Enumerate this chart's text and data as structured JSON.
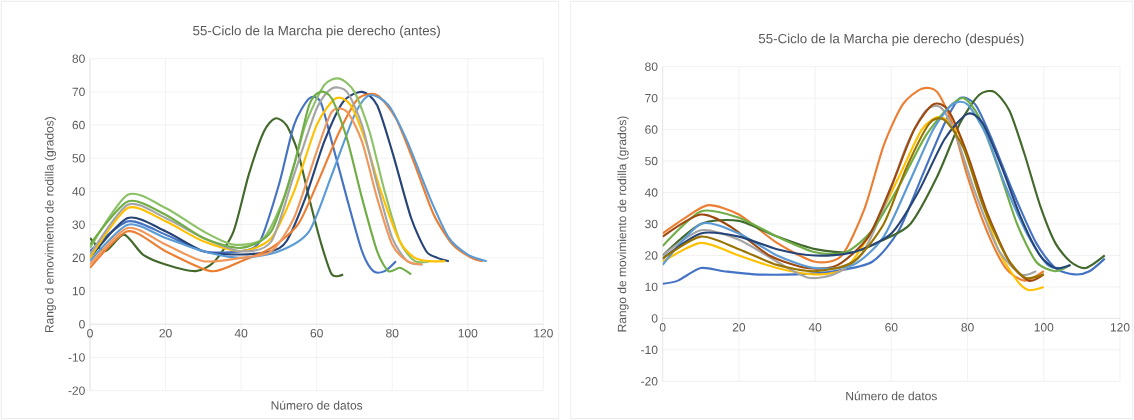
{
  "chart_data": [
    {
      "type": "line",
      "title": "55-Ciclo de la Marcha pie derecho (antes)",
      "xlabel": "Número de datos",
      "ylabel": "Rango d emovimiento de rodilla (grados)",
      "xlim": [
        0,
        120
      ],
      "ylim": [
        -20,
        80
      ],
      "xticks": [
        0,
        20,
        40,
        60,
        80,
        100,
        120
      ],
      "yticks": [
        -20,
        -10,
        0,
        10,
        20,
        30,
        40,
        50,
        60,
        70,
        80
      ],
      "grid": true,
      "marker": "none",
      "line_style": "solid",
      "series": [
        {
          "color": "#43682b",
          "x": [
            0,
            4,
            9,
            14,
            20,
            28,
            33,
            38,
            42,
            46,
            49,
            52,
            55,
            58,
            61,
            64,
            67
          ],
          "values": [
            26,
            22,
            27,
            21,
            18,
            16,
            19,
            28,
            45,
            58,
            62,
            60,
            52,
            38,
            25,
            15,
            15
          ]
        },
        {
          "color": "#4472c4",
          "x": [
            0,
            10,
            20,
            30,
            40,
            45,
            50,
            54,
            58,
            61,
            64,
            68,
            72,
            75,
            78,
            81
          ],
          "values": [
            22,
            31,
            27,
            22,
            22,
            25,
            42,
            60,
            68,
            67,
            55,
            38,
            22,
            16,
            16,
            19
          ]
        },
        {
          "color": "#264478",
          "x": [
            0,
            10,
            20,
            30,
            40,
            48,
            52,
            57,
            62,
            67,
            72,
            76,
            80,
            85,
            89,
            92,
            95
          ],
          "values": [
            20,
            32,
            28,
            22,
            21,
            22,
            25,
            38,
            55,
            67,
            70,
            66,
            52,
            32,
            22,
            20,
            19
          ]
        },
        {
          "color": "#ed7d31",
          "x": [
            0,
            10,
            20,
            32,
            40,
            48,
            55,
            60,
            66,
            71,
            76,
            81,
            86,
            91,
            96,
            101,
            104
          ],
          "values": [
            17,
            28,
            22,
            16,
            19,
            23,
            30,
            42,
            58,
            68,
            69,
            62,
            48,
            33,
            24,
            20,
            19
          ]
        },
        {
          "color": "#5b9bd5",
          "x": [
            0,
            10,
            20,
            30,
            40,
            50,
            58,
            64,
            70,
            74,
            79,
            84,
            90,
            95,
            100,
            105
          ],
          "values": [
            19,
            30,
            26,
            22,
            20,
            22,
            28,
            45,
            63,
            69,
            66,
            55,
            38,
            26,
            21,
            19
          ]
        },
        {
          "color": "#8cc168",
          "x": [
            0,
            10,
            20,
            30,
            38,
            46,
            52,
            57,
            62,
            66,
            70,
            74,
            78,
            82,
            86,
            90
          ],
          "values": [
            23,
            39,
            35,
            28,
            24,
            26,
            40,
            60,
            72,
            74,
            70,
            58,
            40,
            25,
            19,
            19
          ]
        },
        {
          "color": "#ffc000",
          "x": [
            0,
            10,
            20,
            30,
            40,
            48,
            54,
            60,
            65,
            69,
            73,
            77,
            82,
            86,
            90,
            94
          ],
          "values": [
            20,
            35,
            31,
            25,
            22,
            26,
            40,
            60,
            68,
            66,
            55,
            40,
            25,
            20,
            19,
            19
          ]
        },
        {
          "color": "#a5a5a5",
          "x": [
            0,
            10,
            20,
            30,
            40,
            48,
            54,
            60,
            64,
            68,
            72,
            76,
            80,
            84,
            88
          ],
          "values": [
            21,
            36,
            32,
            26,
            22,
            25,
            45,
            65,
            71,
            70,
            60,
            42,
            26,
            19,
            18
          ]
        },
        {
          "color": "#f1975a",
          "x": [
            0,
            10,
            20,
            30,
            40,
            48,
            54,
            60,
            64,
            68,
            72,
            76,
            80,
            84,
            88
          ],
          "values": [
            18,
            29,
            24,
            19,
            20,
            22,
            32,
            52,
            64,
            64,
            55,
            38,
            24,
            19,
            18
          ]
        },
        {
          "color": "#70ad47",
          "x": [
            0,
            10,
            20,
            30,
            40,
            48,
            54,
            58,
            61,
            64,
            68,
            72,
            76,
            79,
            82,
            85
          ],
          "values": [
            24,
            37,
            33,
            26,
            23,
            28,
            48,
            66,
            70,
            68,
            56,
            38,
            22,
            16,
            17,
            15
          ]
        }
      ]
    },
    {
      "type": "line",
      "title": "55-Ciclo de la Marcha  pie derecho (después)",
      "xlabel": "Número de datos",
      "ylabel": "Rango de movimiento de rodilla (grados)",
      "xlim": [
        0,
        120
      ],
      "ylim": [
        -20,
        80
      ],
      "xticks": [
        0,
        20,
        40,
        60,
        80,
        100,
        120
      ],
      "yticks": [
        -20,
        -10,
        0,
        10,
        20,
        30,
        40,
        50,
        60,
        70,
        80
      ],
      "grid": true,
      "marker": "none",
      "line_style": "solid",
      "series": [
        {
          "color": "#4472c4",
          "x": [
            0,
            4,
            10,
            16,
            24,
            35,
            45,
            55,
            62,
            68,
            74,
            78,
            82,
            86,
            92,
            98,
            103,
            108,
            112,
            116
          ],
          "values": [
            11,
            12,
            16,
            15,
            14,
            14,
            15,
            18,
            28,
            45,
            62,
            70,
            68,
            58,
            40,
            24,
            16,
            14,
            15,
            19
          ]
        },
        {
          "color": "#ed7d31",
          "x": [
            0,
            6,
            12,
            20,
            30,
            40,
            47,
            53,
            58,
            63,
            68,
            72,
            76,
            80,
            85,
            90,
            95,
            100
          ],
          "values": [
            27,
            32,
            36,
            33,
            24,
            18,
            20,
            35,
            55,
            68,
            73,
            72,
            62,
            45,
            28,
            16,
            12,
            15
          ]
        },
        {
          "color": "#43682b",
          "x": [
            0,
            10,
            20,
            30,
            40,
            50,
            58,
            65,
            72,
            78,
            83,
            87,
            91,
            95,
            99,
            103,
            107,
            111,
            116
          ],
          "values": [
            20,
            30,
            31,
            26,
            22,
            21,
            25,
            30,
            45,
            62,
            71,
            72,
            66,
            52,
            36,
            24,
            18,
            16,
            20
          ]
        },
        {
          "color": "#ffc000",
          "x": [
            0,
            10,
            20,
            30,
            40,
            48,
            55,
            62,
            68,
            73,
            78,
            83,
            88,
            93,
            96,
            100
          ],
          "values": [
            18,
            24,
            20,
            16,
            14,
            16,
            28,
            45,
            60,
            64,
            58,
            40,
            22,
            12,
            9,
            10
          ]
        },
        {
          "color": "#a5a5a5",
          "x": [
            0,
            10,
            20,
            30,
            38,
            45,
            52,
            58,
            64,
            69,
            73,
            77,
            82,
            88,
            94,
            98
          ],
          "values": [
            20,
            28,
            25,
            18,
            13,
            14,
            20,
            35,
            55,
            66,
            67,
            58,
            40,
            22,
            14,
            15
          ]
        },
        {
          "color": "#70ad47",
          "x": [
            0,
            10,
            20,
            30,
            40,
            48,
            55,
            62,
            69,
            75,
            79,
            83,
            88,
            93,
            98,
            103,
            107
          ],
          "values": [
            23,
            34,
            32,
            26,
            21,
            21,
            28,
            42,
            58,
            67,
            70,
            64,
            48,
            30,
            18,
            15,
            17
          ]
        },
        {
          "color": "#9e480e",
          "x": [
            0,
            10,
            18,
            28,
            38,
            46,
            54,
            60,
            66,
            71,
            75,
            80,
            85,
            91,
            96,
            100
          ],
          "values": [
            26,
            33,
            29,
            20,
            16,
            17,
            26,
            42,
            60,
            68,
            66,
            52,
            34,
            18,
            12,
            14
          ]
        },
        {
          "color": "#5b9bd5",
          "x": [
            0,
            10,
            20,
            30,
            40,
            50,
            58,
            65,
            71,
            76,
            80,
            85,
            90,
            96,
            101,
            105
          ],
          "values": [
            17,
            30,
            27,
            20,
            16,
            17,
            26,
            44,
            60,
            68,
            68,
            58,
            42,
            26,
            17,
            16
          ]
        },
        {
          "color": "#264478",
          "x": [
            0,
            10,
            20,
            30,
            40,
            50,
            60,
            67,
            74,
            80,
            84,
            89,
            94,
            99,
            103,
            107
          ],
          "values": [
            19,
            27,
            26,
            22,
            20,
            21,
            27,
            40,
            57,
            65,
            62,
            48,
            32,
            20,
            16,
            17
          ]
        },
        {
          "color": "#997300",
          "x": [
            0,
            10,
            20,
            30,
            40,
            50,
            58,
            64,
            70,
            74,
            79,
            84,
            90,
            95,
            100
          ],
          "values": [
            19,
            26,
            22,
            17,
            15,
            18,
            30,
            48,
            62,
            63,
            54,
            36,
            20,
            13,
            14
          ]
        }
      ]
    }
  ]
}
